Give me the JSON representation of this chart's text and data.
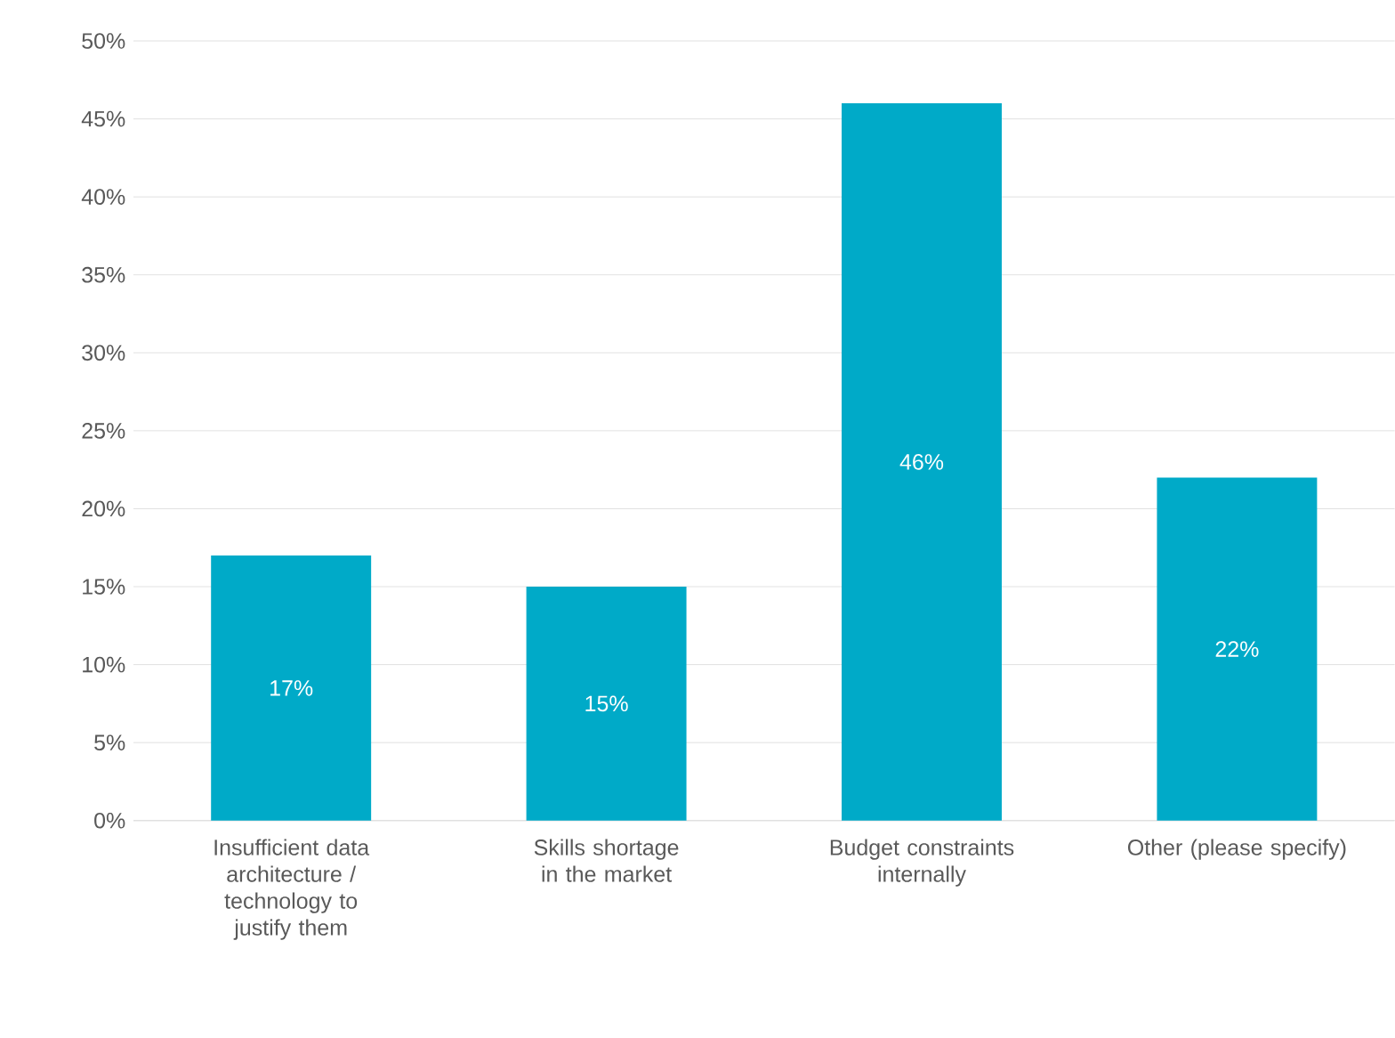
{
  "chart_data": {
    "type": "bar",
    "categories": [
      "Insufficient data architecture / technology to justify them",
      "Skills shortage in the market",
      "Budget constraints internally",
      "Other (please specify)"
    ],
    "values": [
      17,
      15,
      46,
      22
    ],
    "value_labels": [
      "17%",
      "15%",
      "46%",
      "22%"
    ],
    "color": "#00aac8",
    "ylim": [
      0,
      50
    ],
    "yticks": [
      {
        "value": 0,
        "label": "0%"
      },
      {
        "value": 5,
        "label": "5%"
      },
      {
        "value": 10,
        "label": "10%"
      },
      {
        "value": 15,
        "label": "15%"
      },
      {
        "value": 20,
        "label": "20%"
      },
      {
        "value": 25,
        "label": "25%"
      },
      {
        "value": 30,
        "label": "30%"
      },
      {
        "value": 35,
        "label": "35%"
      },
      {
        "value": 40,
        "label": "40%"
      },
      {
        "value": 45,
        "label": "45%"
      },
      {
        "value": 50,
        "label": "50%"
      }
    ],
    "grid": "y"
  }
}
